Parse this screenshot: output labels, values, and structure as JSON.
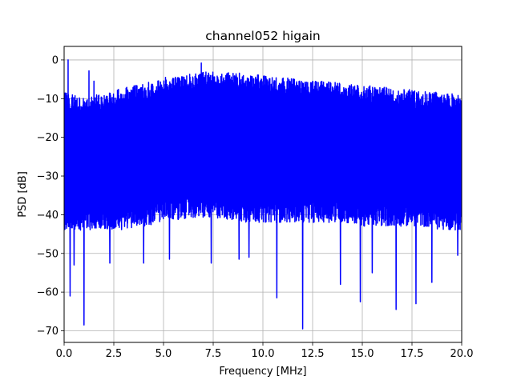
{
  "chart_data": {
    "type": "line",
    "title": "channel052 higain",
    "xlabel": "Frequency [MHz]",
    "ylabel": "PSD [dB]",
    "xlim": [
      0,
      20
    ],
    "ylim": [
      -73,
      3.5
    ],
    "xticks": [
      0,
      2.5,
      5,
      7.5,
      10,
      12.5,
      15,
      17.5,
      20
    ],
    "xtick_labels": [
      "0.0",
      "2.5",
      "5.0",
      "7.5",
      "10.0",
      "12.5",
      "15.0",
      "17.5",
      "20.0"
    ],
    "yticks": [
      0,
      -10,
      -20,
      -30,
      -40,
      -50,
      -60,
      -70
    ],
    "ytick_labels": [
      "0",
      "−10",
      "−20",
      "−30",
      "−40",
      "−50",
      "−60",
      "−70"
    ],
    "grid": true,
    "series": [
      {
        "color": "#0000ff",
        "upper_envelope": {
          "x": [
            0,
            0.15,
            0.3,
            0.6,
            1.0,
            1.5,
            2.0,
            3.0,
            4.0,
            5.0,
            6.0,
            7.0,
            8.0,
            9.0,
            10.0,
            11.0,
            12.0,
            13.0,
            14.0,
            15.0,
            16.0,
            17.0,
            18.0,
            19.0,
            20.0
          ],
          "y": [
            -8,
            -8,
            -9,
            -9,
            -10,
            -9,
            -9,
            -7,
            -6,
            -5,
            -4,
            -3,
            -3,
            -3.5,
            -4,
            -4.5,
            -5,
            -5.5,
            -6,
            -6.5,
            -7,
            -7.5,
            -8,
            -8.5,
            -9
          ]
        },
        "lower_envelope": {
          "x": [
            0,
            1.0,
            2.0,
            3.0,
            4.0,
            5.0,
            6.0,
            7.0,
            8.0,
            9.0,
            10.0,
            11.0,
            12.0,
            13.0,
            14.0,
            15.0,
            16.0,
            17.0,
            18.0,
            19.0,
            20.0
          ],
          "y": [
            -44,
            -44,
            -44,
            -44,
            -43,
            -42,
            -41,
            -41,
            -41,
            -42,
            -42,
            -42,
            -42,
            -42,
            -42,
            -43,
            -43,
            -43,
            -43,
            -44,
            -44
          ]
        },
        "peaks": [
          {
            "x": 0.2,
            "y": 0
          },
          {
            "x": 1.25,
            "y": -2.8
          },
          {
            "x": 1.5,
            "y": -5.5
          },
          {
            "x": 6.9,
            "y": -0.8
          },
          {
            "x": 5.1,
            "y": -4.5
          }
        ],
        "dips": [
          {
            "x": 0.3,
            "y": -61
          },
          {
            "x": 0.5,
            "y": -53
          },
          {
            "x": 1.0,
            "y": -68.5
          },
          {
            "x": 2.3,
            "y": -52.5
          },
          {
            "x": 4.0,
            "y": -52.5
          },
          {
            "x": 5.3,
            "y": -51.5
          },
          {
            "x": 7.4,
            "y": -52.5
          },
          {
            "x": 8.8,
            "y": -51.5
          },
          {
            "x": 9.3,
            "y": -51
          },
          {
            "x": 10.7,
            "y": -61.5
          },
          {
            "x": 12.0,
            "y": -69.5
          },
          {
            "x": 13.9,
            "y": -58
          },
          {
            "x": 14.9,
            "y": -62.5
          },
          {
            "x": 15.5,
            "y": -55
          },
          {
            "x": 16.7,
            "y": -64.5
          },
          {
            "x": 17.7,
            "y": -63
          },
          {
            "x": 18.5,
            "y": -57.5
          },
          {
            "x": 19.8,
            "y": -50.5
          }
        ]
      }
    ]
  }
}
